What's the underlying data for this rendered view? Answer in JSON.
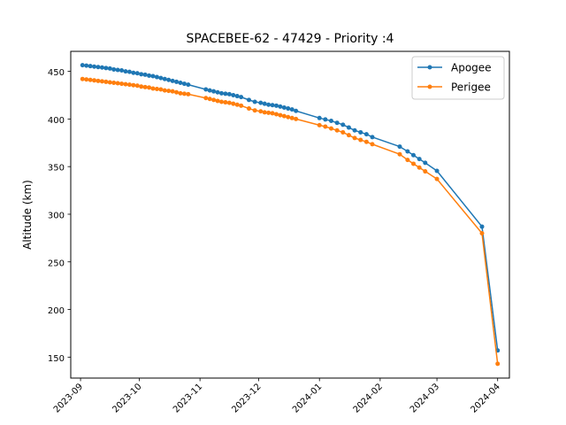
{
  "chart_data": {
    "type": "line",
    "title": "SPACEBEE-62 - 47429 - Priority :4",
    "xlabel": "",
    "ylabel": "Altitude (km)",
    "x_ticks": [
      "2023-09",
      "2023-10",
      "2023-11",
      "2023-12",
      "2024-01",
      "2024-02",
      "2024-03",
      "2024-04"
    ],
    "y_ticks": [
      150,
      200,
      250,
      300,
      350,
      400,
      450
    ],
    "xlim": [
      "2023-08-27",
      "2024-04-07"
    ],
    "ylim": [
      128,
      471
    ],
    "grid": false,
    "legend": "top-right",
    "series": [
      {
        "name": "Apogee",
        "color": "#1f77b4",
        "points": [
          [
            "2023-09-02",
            456.5
          ],
          [
            "2023-09-04",
            456
          ],
          [
            "2023-09-06",
            455.5
          ],
          [
            "2023-09-08",
            455
          ],
          [
            "2023-09-10",
            454.5
          ],
          [
            "2023-09-12",
            454
          ],
          [
            "2023-09-14",
            453.5
          ],
          [
            "2023-09-16",
            453
          ],
          [
            "2023-09-18",
            452
          ],
          [
            "2023-09-20",
            451.5
          ],
          [
            "2023-09-22",
            451
          ],
          [
            "2023-09-24",
            450
          ],
          [
            "2023-09-26",
            449.5
          ],
          [
            "2023-09-28",
            448.5
          ],
          [
            "2023-09-30",
            448
          ],
          [
            "2023-10-02",
            447
          ],
          [
            "2023-10-04",
            446.5
          ],
          [
            "2023-10-06",
            445.5
          ],
          [
            "2023-10-08",
            445
          ],
          [
            "2023-10-10",
            444
          ],
          [
            "2023-10-12",
            443
          ],
          [
            "2023-10-14",
            442
          ],
          [
            "2023-10-16",
            441
          ],
          [
            "2023-10-18",
            440
          ],
          [
            "2023-10-20",
            439
          ],
          [
            "2023-10-22",
            438
          ],
          [
            "2023-10-24",
            437
          ],
          [
            "2023-10-26",
            436
          ],
          [
            "2023-11-04",
            431
          ],
          [
            "2023-11-06",
            430
          ],
          [
            "2023-11-08",
            429
          ],
          [
            "2023-11-10",
            428
          ],
          [
            "2023-11-12",
            427
          ],
          [
            "2023-11-14",
            426.5
          ],
          [
            "2023-11-16",
            426
          ],
          [
            "2023-11-18",
            425
          ],
          [
            "2023-11-20",
            424
          ],
          [
            "2023-11-22",
            423
          ],
          [
            "2023-11-26",
            420
          ],
          [
            "2023-11-29",
            418
          ],
          [
            "2023-12-02",
            417
          ],
          [
            "2023-12-04",
            416
          ],
          [
            "2023-12-06",
            415
          ],
          [
            "2023-12-08",
            414.5
          ],
          [
            "2023-12-10",
            414
          ],
          [
            "2023-12-12",
            413
          ],
          [
            "2023-12-14",
            412
          ],
          [
            "2023-12-16",
            411
          ],
          [
            "2023-12-18",
            410
          ],
          [
            "2023-12-20",
            408.5
          ],
          [
            "2024-01-01",
            401
          ],
          [
            "2024-01-04",
            399.5
          ],
          [
            "2024-01-07",
            398
          ],
          [
            "2024-01-10",
            396
          ],
          [
            "2024-01-13",
            394
          ],
          [
            "2024-01-16",
            391
          ],
          [
            "2024-01-19",
            388
          ],
          [
            "2024-01-22",
            386
          ],
          [
            "2024-01-25",
            384
          ],
          [
            "2024-01-28",
            381
          ],
          [
            "2024-02-11",
            371
          ],
          [
            "2024-02-15",
            366
          ],
          [
            "2024-02-18",
            362
          ],
          [
            "2024-02-21",
            358
          ],
          [
            "2024-02-24",
            354
          ],
          [
            "2024-03-01",
            345.5
          ],
          [
            "2024-03-24",
            287
          ],
          [
            "2024-04-01",
            157
          ]
        ]
      },
      {
        "name": "Perigee",
        "color": "#ff7f0e",
        "points": [
          [
            "2023-09-02",
            442
          ],
          [
            "2023-09-04",
            441.5
          ],
          [
            "2023-09-06",
            441
          ],
          [
            "2023-09-08",
            440.5
          ],
          [
            "2023-09-10",
            440
          ],
          [
            "2023-09-12",
            439.5
          ],
          [
            "2023-09-14",
            439
          ],
          [
            "2023-09-16",
            438.5
          ],
          [
            "2023-09-18",
            438
          ],
          [
            "2023-09-20",
            437.5
          ],
          [
            "2023-09-22",
            437
          ],
          [
            "2023-09-24",
            436.5
          ],
          [
            "2023-09-26",
            436
          ],
          [
            "2023-09-28",
            435.5
          ],
          [
            "2023-09-30",
            435
          ],
          [
            "2023-10-02",
            434
          ],
          [
            "2023-10-04",
            433.5
          ],
          [
            "2023-10-06",
            433
          ],
          [
            "2023-10-08",
            432
          ],
          [
            "2023-10-10",
            431.5
          ],
          [
            "2023-10-12",
            431
          ],
          [
            "2023-10-14",
            430
          ],
          [
            "2023-10-16",
            429.5
          ],
          [
            "2023-10-18",
            429
          ],
          [
            "2023-10-20",
            428
          ],
          [
            "2023-10-22",
            427
          ],
          [
            "2023-10-24",
            426.5
          ],
          [
            "2023-10-26",
            426
          ],
          [
            "2023-11-04",
            422
          ],
          [
            "2023-11-06",
            421
          ],
          [
            "2023-11-08",
            420
          ],
          [
            "2023-11-10",
            419
          ],
          [
            "2023-11-12",
            418
          ],
          [
            "2023-11-14",
            417.5
          ],
          [
            "2023-11-16",
            417
          ],
          [
            "2023-11-18",
            416
          ],
          [
            "2023-11-20",
            415
          ],
          [
            "2023-11-22",
            414
          ],
          [
            "2023-11-26",
            411
          ],
          [
            "2023-11-29",
            409
          ],
          [
            "2023-12-02",
            408
          ],
          [
            "2023-12-04",
            407
          ],
          [
            "2023-12-06",
            406.5
          ],
          [
            "2023-12-08",
            406
          ],
          [
            "2023-12-10",
            405
          ],
          [
            "2023-12-12",
            404
          ],
          [
            "2023-12-14",
            403
          ],
          [
            "2023-12-16",
            402
          ],
          [
            "2023-12-18",
            401
          ],
          [
            "2023-12-20",
            400
          ],
          [
            "2024-01-01",
            393.5
          ],
          [
            "2024-01-04",
            392
          ],
          [
            "2024-01-07",
            390
          ],
          [
            "2024-01-10",
            388
          ],
          [
            "2024-01-13",
            386
          ],
          [
            "2024-01-16",
            383
          ],
          [
            "2024-01-19",
            380
          ],
          [
            "2024-01-22",
            378
          ],
          [
            "2024-01-25",
            376
          ],
          [
            "2024-01-28",
            373.5
          ],
          [
            "2024-02-11",
            363
          ],
          [
            "2024-02-15",
            357
          ],
          [
            "2024-02-18",
            353
          ],
          [
            "2024-02-21",
            349
          ],
          [
            "2024-02-24",
            345
          ],
          [
            "2024-03-01",
            337
          ],
          [
            "2024-03-24",
            280
          ],
          [
            "2024-04-01",
            143
          ]
        ]
      }
    ]
  }
}
